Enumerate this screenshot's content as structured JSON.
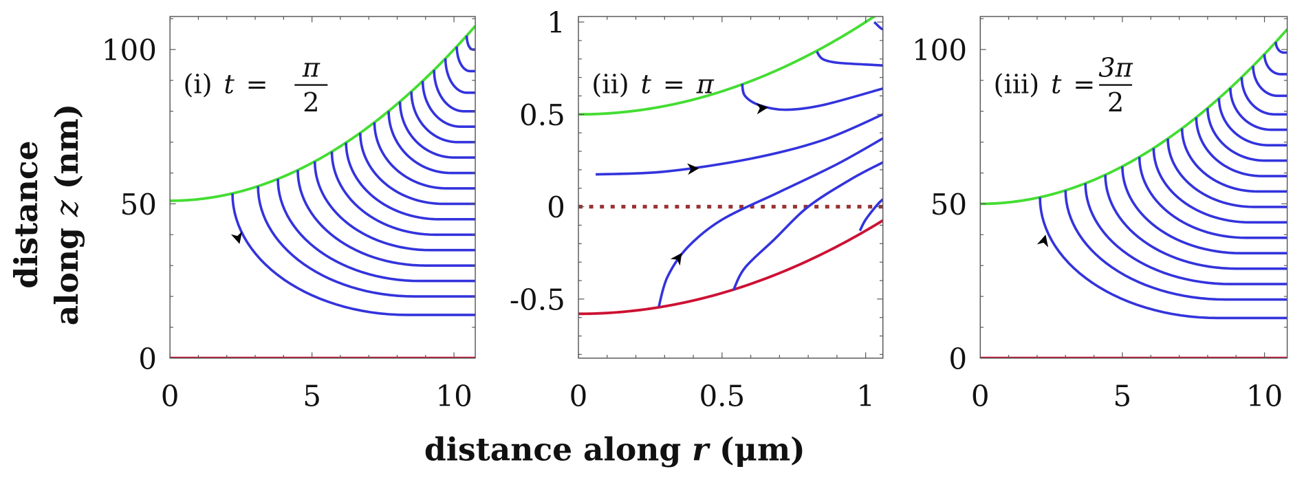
{
  "chart_data": [
    {
      "type": "line",
      "panel": "i",
      "title": {
        "prefix": "(i)",
        "lhs": "t",
        "eq": "=",
        "numerator": "π",
        "denominator": "2"
      },
      "xlim": [
        0,
        10.75
      ],
      "ylim": [
        0,
        110.7
      ],
      "x_ticks": [
        "0",
        "5",
        "10"
      ],
      "x_tick_values": [
        0,
        5,
        10
      ],
      "x_minor_step": 1,
      "y_ticks": [
        "0",
        "50",
        "100"
      ],
      "y_tick_values": [
        0,
        50,
        100
      ],
      "y_minor_step": 10,
      "upper_boundary": {
        "color": "#44dd33",
        "z0": 51,
        "k": 0.49
      },
      "lower_boundary": {
        "color": "#cc1133",
        "z": 0
      },
      "streamlines": {
        "color": "#3333dd",
        "start_r": [
          2.2,
          3.1,
          3.8,
          4.5,
          5.1,
          5.7,
          6.2,
          6.7,
          7.2,
          7.7,
          8.1,
          8.5,
          8.9,
          9.3,
          9.7,
          10.1,
          10.45
        ],
        "end_z": [
          14,
          20,
          25,
          30,
          35,
          40,
          45,
          50,
          55,
          60,
          65,
          70,
          75,
          80,
          86,
          93,
          100
        ]
      },
      "arrow": {
        "r": 2.45,
        "z": 37,
        "direction": "down"
      }
    },
    {
      "type": "line",
      "panel": "ii",
      "title": {
        "prefix": "(ii)",
        "lhs": "t",
        "eq": "=",
        "rhs": "π"
      },
      "xlim": [
        0,
        1.06
      ],
      "ylim": [
        -0.82,
        1.03
      ],
      "x_ticks": [
        "0",
        "0.5",
        "1"
      ],
      "x_tick_values": [
        0,
        0.5,
        1
      ],
      "x_minor_step": 0.1,
      "y_ticks": [
        "-0.5",
        "0",
        "0.5",
        "1"
      ],
      "y_tick_values": [
        -0.5,
        0,
        0.5,
        1
      ],
      "y_minor_step": 0.1,
      "upper_boundary": {
        "color": "#44dd33",
        "z0": 0.5,
        "k": 0.5
      },
      "lower_boundary": {
        "color": "#cc1133",
        "z0": -0.58,
        "k": 0.45
      },
      "dotted_line": {
        "color": "#993333",
        "z": 0
      },
      "streamlines": {
        "color": "#3333dd",
        "curves": [
          [
            [
              1.03,
              1.0
            ],
            [
              1.05,
              0.97
            ],
            [
              1.06,
              0.96
            ]
          ],
          [
            [
              0.83,
              0.84
            ],
            [
              0.85,
              0.8
            ],
            [
              0.9,
              0.78
            ],
            [
              1.0,
              0.77
            ],
            [
              1.06,
              0.765
            ]
          ],
          [
            [
              0.57,
              0.665
            ],
            [
              0.58,
              0.6
            ],
            [
              0.63,
              0.55
            ],
            [
              0.72,
              0.525
            ],
            [
              0.85,
              0.55
            ],
            [
              1.06,
              0.64
            ]
          ],
          [
            [
              0.06,
              0.175
            ],
            [
              0.3,
              0.19
            ],
            [
              0.6,
              0.26
            ],
            [
              0.85,
              0.36
            ],
            [
              1.06,
              0.5
            ]
          ],
          [
            [
              0.28,
              -0.54
            ],
            [
              0.31,
              -0.38
            ],
            [
              0.38,
              -0.22
            ],
            [
              0.5,
              -0.07
            ],
            [
              0.7,
              0.08
            ],
            [
              0.9,
              0.23
            ],
            [
              1.06,
              0.37
            ]
          ],
          [
            [
              0.54,
              -0.45
            ],
            [
              0.58,
              -0.33
            ],
            [
              0.68,
              -0.18
            ],
            [
              0.8,
              0.0
            ],
            [
              0.95,
              0.15
            ],
            [
              1.06,
              0.24
            ]
          ],
          [
            [
              0.98,
              -0.13
            ],
            [
              1.0,
              -0.07
            ],
            [
              1.04,
              0.01
            ],
            [
              1.06,
              0.04
            ]
          ]
        ]
      },
      "arrows": [
        {
          "r": 0.66,
          "z": 0.537,
          "angle_deg": -5
        },
        {
          "r": 0.42,
          "z": 0.208,
          "angle_deg": -4
        },
        {
          "r": 0.36,
          "z": -0.25,
          "angle_deg": -55
        }
      ]
    },
    {
      "type": "line",
      "panel": "iii",
      "title": {
        "prefix": "(iii)",
        "lhs": "t",
        "eq": "=",
        "numerator": "3π",
        "denominator": "2"
      },
      "xlim": [
        0,
        10.8
      ],
      "ylim": [
        0,
        110.7
      ],
      "x_ticks": [
        "0",
        "5",
        "10"
      ],
      "x_tick_values": [
        0,
        5,
        10
      ],
      "x_minor_step": 1,
      "y_ticks": [
        "0",
        "50",
        "100"
      ],
      "y_tick_values": [
        0,
        50,
        100
      ],
      "y_minor_step": 10,
      "upper_boundary": {
        "color": "#44dd33",
        "z0": 50,
        "k": 0.485
      },
      "lower_boundary": {
        "color": "#cc1133",
        "z": 0
      },
      "streamlines": {
        "color": "#3333dd",
        "start_r": [
          2.1,
          3.0,
          3.7,
          4.4,
          5.0,
          5.6,
          6.1,
          6.6,
          7.1,
          7.6,
          8.0,
          8.4,
          8.8,
          9.2,
          9.6,
          10.0,
          10.4
        ],
        "end_z": [
          13,
          19,
          24,
          29,
          34,
          39,
          44,
          49,
          54,
          59,
          64,
          69,
          74,
          79,
          85,
          92,
          99
        ]
      },
      "arrow": {
        "r": 2.3,
        "z": 40,
        "direction": "up"
      }
    }
  ],
  "axes": {
    "x_title": {
      "text": "distance along ",
      "var": "r",
      "unit": " (μm)"
    },
    "y_title": {
      "line1": "distance",
      "line2": "along ",
      "var": "z",
      "unit": " (nm)"
    }
  }
}
